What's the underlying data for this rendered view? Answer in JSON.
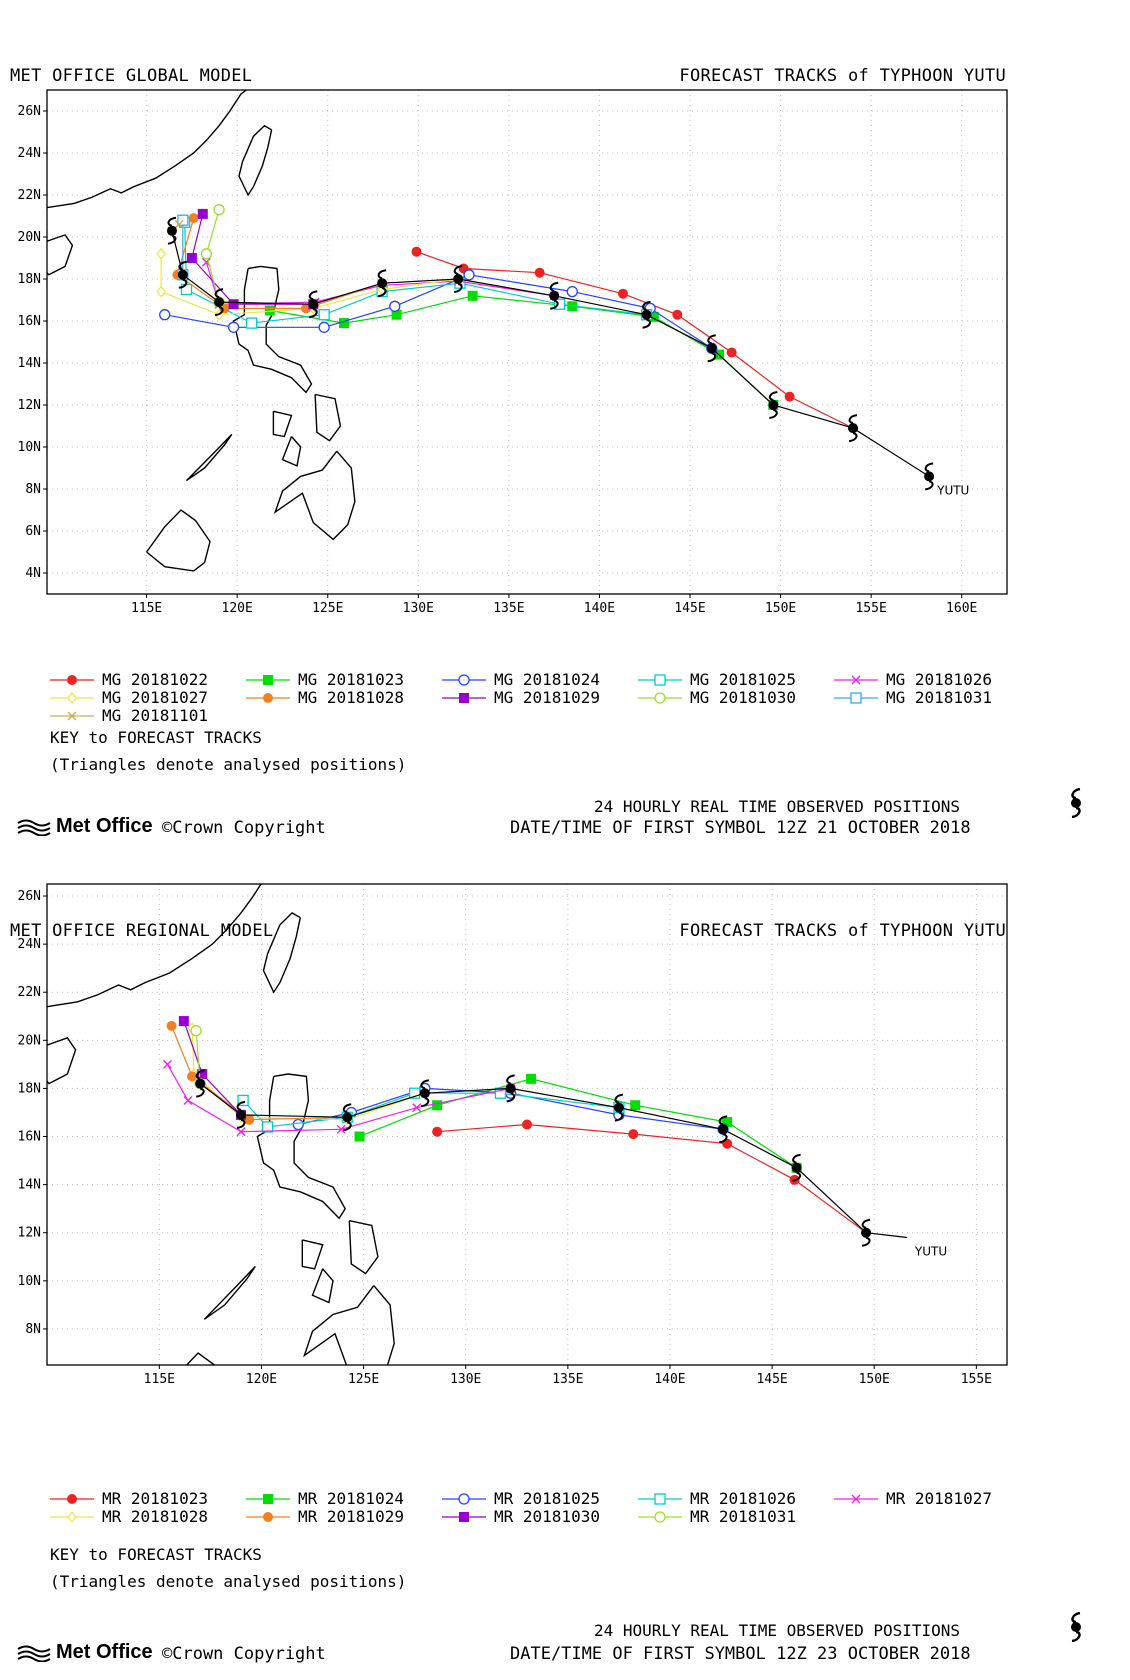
{
  "chart_data": [
    {
      "type": "map-tracks",
      "title": "MET OFFICE GLOBAL MODEL",
      "subtitle": "FORECAST TRACKS of TYPHOON YUTU",
      "xlim": [
        109.5,
        162.5
      ],
      "ylim": [
        3,
        27
      ],
      "xticks": [
        115,
        120,
        125,
        130,
        135,
        140,
        145,
        150,
        155,
        160
      ],
      "xtick_labels": [
        "115E",
        "120E",
        "125E",
        "130E",
        "135E",
        "140E",
        "145E",
        "150E",
        "155E",
        "160E"
      ],
      "yticks": [
        4,
        6,
        8,
        10,
        12,
        14,
        16,
        18,
        20,
        22,
        24,
        26
      ],
      "ytick_labels": [
        "4N",
        "6N",
        "8N",
        "10N",
        "12N",
        "14N",
        "16N",
        "18N",
        "20N",
        "22N",
        "24N",
        "26N"
      ],
      "storm_label": "YUTU",
      "observed_track": [
        [
          158.2,
          8.6
        ],
        [
          154.0,
          10.9
        ],
        [
          149.6,
          12.0
        ],
        [
          146.2,
          14.7
        ],
        [
          142.6,
          16.3
        ],
        [
          137.5,
          17.2
        ],
        [
          132.2,
          18.0
        ],
        [
          128.0,
          17.8
        ],
        [
          124.2,
          16.8
        ],
        [
          119.0,
          16.9
        ],
        [
          117.0,
          18.2
        ],
        [
          116.4,
          20.3
        ]
      ],
      "series": [
        {
          "name": "MG 20181022",
          "color": "#ee2222",
          "marker": "circle-filled",
          "points": [
            [
              154.0,
              10.9
            ],
            [
              150.5,
              12.4
            ],
            [
              147.3,
              14.5
            ],
            [
              144.3,
              16.3
            ],
            [
              141.3,
              17.3
            ],
            [
              136.7,
              18.3
            ],
            [
              132.5,
              18.5
            ],
            [
              129.9,
              19.3
            ]
          ]
        },
        {
          "name": "MG 20181023",
          "color": "#00dd00",
          "marker": "square-filled",
          "points": [
            [
              149.6,
              12.0
            ],
            [
              146.6,
              14.4
            ],
            [
              143.0,
              16.2
            ],
            [
              138.5,
              16.7
            ],
            [
              133.0,
              17.2
            ],
            [
              128.8,
              16.3
            ],
            [
              125.9,
              15.9
            ],
            [
              121.8,
              16.5
            ]
          ]
        },
        {
          "name": "MG 20181024",
          "color": "#2244ff",
          "marker": "circle-open",
          "points": [
            [
              146.2,
              14.7
            ],
            [
              142.8,
              16.6
            ],
            [
              138.5,
              17.4
            ],
            [
              132.8,
              18.2
            ],
            [
              128.7,
              16.7
            ],
            [
              124.8,
              15.7
            ],
            [
              119.8,
              15.7
            ],
            [
              116.0,
              16.3
            ]
          ]
        },
        {
          "name": "MG 20181025",
          "color": "#00cccc",
          "marker": "square-open",
          "points": [
            [
              142.6,
              16.3
            ],
            [
              137.8,
              16.8
            ],
            [
              132.3,
              17.8
            ],
            [
              128.0,
              17.4
            ],
            [
              124.8,
              16.3
            ],
            [
              120.8,
              15.9
            ],
            [
              117.2,
              17.5
            ],
            [
              117.1,
              20.7
            ]
          ]
        },
        {
          "name": "MG 20181026",
          "color": "#ee22ee",
          "marker": "x",
          "points": [
            [
              137.5,
              17.2
            ],
            [
              132.2,
              17.9
            ],
            [
              128.0,
              17.7
            ],
            [
              124.3,
              16.9
            ],
            [
              119.0,
              16.8
            ],
            [
              118.3,
              18.8
            ]
          ]
        },
        {
          "name": "MG 20181027",
          "color": "#e8e84a",
          "marker": "diamond",
          "points": [
            [
              132.2,
              18.0
            ],
            [
              128.0,
              17.5
            ],
            [
              124.2,
              16.6
            ],
            [
              119.0,
              16.3
            ],
            [
              115.8,
              17.4
            ],
            [
              115.8,
              19.2
            ]
          ]
        },
        {
          "name": "MG 20181028",
          "color": "#f08020",
          "marker": "circle-filled",
          "points": [
            [
              128.0,
              17.8
            ],
            [
              123.8,
              16.6
            ],
            [
              119.3,
              16.6
            ],
            [
              116.7,
              18.2
            ],
            [
              117.6,
              20.9
            ]
          ]
        },
        {
          "name": "MG 20181029",
          "color": "#9900cc",
          "marker": "square-filled",
          "points": [
            [
              124.2,
              16.8
            ],
            [
              119.8,
              16.8
            ],
            [
              117.5,
              19.0
            ],
            [
              118.1,
              21.1
            ]
          ]
        },
        {
          "name": "MG 20181030",
          "color": "#99dd33",
          "marker": "circle-open",
          "points": [
            [
              119.0,
              16.9
            ],
            [
              118.3,
              19.2
            ],
            [
              119.0,
              21.3
            ]
          ]
        },
        {
          "name": "MG 20181031",
          "color": "#33aaee",
          "marker": "square-open",
          "points": [
            [
              117.0,
              18.2
            ],
            [
              117.0,
              20.8
            ]
          ]
        },
        {
          "name": "MG 20181101",
          "color": "#ccaa55",
          "marker": "x",
          "points": [
            [
              116.4,
              20.3
            ],
            [
              116.8,
              20.6
            ]
          ]
        }
      ]
    },
    {
      "type": "map-tracks",
      "title": "MET OFFICE REGIONAL MODEL",
      "subtitle": "FORECAST TRACKS of TYPHOON YUTU",
      "xlim": [
        109.5,
        156.5
      ],
      "ylim": [
        6.5,
        26.5
      ],
      "xticks": [
        115,
        120,
        125,
        130,
        135,
        140,
        145,
        150,
        155
      ],
      "xtick_labels": [
        "115E",
        "120E",
        "125E",
        "130E",
        "135E",
        "140E",
        "145E",
        "150E",
        "155E"
      ],
      "yticks": [
        8,
        10,
        12,
        14,
        16,
        18,
        20,
        22,
        24,
        26
      ],
      "ytick_labels": [
        "8N",
        "10N",
        "12N",
        "14N",
        "16N",
        "18N",
        "20N",
        "22N",
        "24N",
        "26N"
      ],
      "storm_label": "YUTU",
      "observed_track": [
        [
          151.6,
          11.8
        ],
        [
          149.6,
          12.0
        ],
        [
          146.2,
          14.7
        ],
        [
          142.6,
          16.3
        ],
        [
          137.5,
          17.2
        ],
        [
          132.2,
          18.0
        ],
        [
          128.0,
          17.8
        ],
        [
          124.2,
          16.8
        ],
        [
          119.0,
          16.9
        ],
        [
          117.0,
          18.2
        ]
      ],
      "series": [
        {
          "name": "MR 20181023",
          "color": "#ee2222",
          "marker": "circle-filled",
          "points": [
            [
              149.6,
              12.0
            ],
            [
              146.1,
              14.2
            ],
            [
              142.8,
              15.7
            ],
            [
              138.2,
              16.1
            ],
            [
              133.0,
              16.5
            ],
            [
              128.6,
              16.2
            ]
          ]
        },
        {
          "name": "MR 20181024",
          "color": "#00dd00",
          "marker": "square-filled",
          "points": [
            [
              146.2,
              14.7
            ],
            [
              142.8,
              16.6
            ],
            [
              138.3,
              17.3
            ],
            [
              133.2,
              18.4
            ],
            [
              128.6,
              17.3
            ],
            [
              124.8,
              16.0
            ]
          ]
        },
        {
          "name": "MR 20181025",
          "color": "#2244ff",
          "marker": "circle-open",
          "points": [
            [
              142.6,
              16.3
            ],
            [
              137.5,
              16.9
            ],
            [
              132.2,
              17.8
            ],
            [
              128.0,
              18.0
            ],
            [
              124.4,
              17.0
            ],
            [
              121.8,
              16.5
            ]
          ]
        },
        {
          "name": "MR 20181026",
          "color": "#00cccc",
          "marker": "square-open",
          "points": [
            [
              137.5,
              17.2
            ],
            [
              131.7,
              17.8
            ],
            [
              127.5,
              17.8
            ],
            [
              124.2,
              16.8
            ],
            [
              120.3,
              16.4
            ],
            [
              119.1,
              17.5
            ]
          ]
        },
        {
          "name": "MR 20181027",
          "color": "#ee22ee",
          "marker": "x",
          "points": [
            [
              132.2,
              18.0
            ],
            [
              127.6,
              17.2
            ],
            [
              123.9,
              16.3
            ],
            [
              119.0,
              16.2
            ],
            [
              116.4,
              17.5
            ],
            [
              115.4,
              19.0
            ]
          ]
        },
        {
          "name": "MR 20181028",
          "color": "#e8e84a",
          "marker": "diamond",
          "points": [
            [
              128.0,
              17.8
            ],
            [
              124.2,
              16.7
            ],
            [
              119.0,
              16.8
            ],
            [
              116.7,
              18.6
            ],
            [
              116.6,
              20.5
            ]
          ]
        },
        {
          "name": "MR 20181029",
          "color": "#f08020",
          "marker": "circle-filled",
          "points": [
            [
              124.2,
              16.8
            ],
            [
              119.4,
              16.7
            ],
            [
              116.6,
              18.5
            ],
            [
              115.6,
              20.6
            ]
          ]
        },
        {
          "name": "MR 20181030",
          "color": "#9900cc",
          "marker": "square-filled",
          "points": [
            [
              119.0,
              16.9
            ],
            [
              117.1,
              18.6
            ],
            [
              116.2,
              20.8
            ]
          ]
        },
        {
          "name": "MR 20181031",
          "color": "#99dd33",
          "marker": "circle-open",
          "points": [
            [
              117.0,
              18.2
            ],
            [
              116.8,
              20.4
            ]
          ]
        }
      ]
    }
  ],
  "footer": {
    "key_title": "KEY to FORECAST TRACKS",
    "key_note": "(Triangles denote analysed positions)",
    "observed_label": "24 HOURLY REAL TIME OBSERVED POSITIONS",
    "logo_text": "Met Office",
    "copyright": "©Crown Copyright",
    "first_symbol_global": "DATE/TIME OF FIRST SYMBOL 12Z 21 OCTOBER 2018",
    "first_symbol_regional": "DATE/TIME OF FIRST SYMBOL 12Z 23 OCTOBER 2018"
  }
}
